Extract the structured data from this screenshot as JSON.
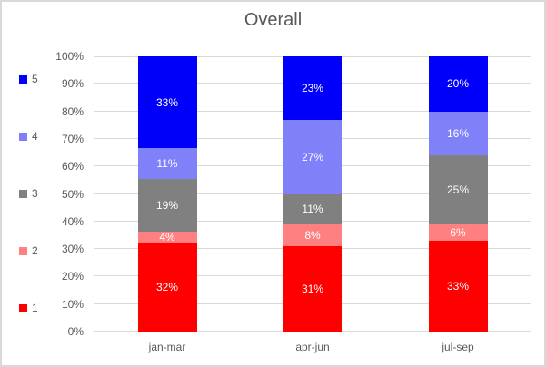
{
  "chart_data": {
    "type": "bar",
    "subtype": "100%-stacked-column",
    "title": "Overall",
    "categories": [
      "jan-mar",
      "apr-jun",
      "jul-sep"
    ],
    "series": [
      {
        "name": "1",
        "color": "#ff0000",
        "values": [
          32,
          31,
          33
        ]
      },
      {
        "name": "2",
        "color": "#ff8080",
        "values": [
          4,
          8,
          6
        ]
      },
      {
        "name": "3",
        "color": "#808080",
        "values": [
          19,
          11,
          25
        ]
      },
      {
        "name": "4",
        "color": "#8080f8",
        "values": [
          11,
          27,
          16
        ]
      },
      {
        "name": "5",
        "color": "#0000fa",
        "values": [
          33,
          23,
          20
        ]
      }
    ],
    "data_label_suffix": "%",
    "y_ticks": [
      "0%",
      "10%",
      "20%",
      "30%",
      "40%",
      "50%",
      "60%",
      "70%",
      "80%",
      "90%",
      "100%"
    ],
    "ylim": [
      0,
      100
    ],
    "grid": "horizontal",
    "legend_position": "left",
    "legend_order_top_to_bottom": [
      "5",
      "4",
      "3",
      "2",
      "1"
    ],
    "colors": {
      "text": "#595959",
      "gridline": "#d9d9d9",
      "data_label_text": "#ffffff",
      "background": "#ffffff",
      "border": "#d9d9d9"
    }
  }
}
